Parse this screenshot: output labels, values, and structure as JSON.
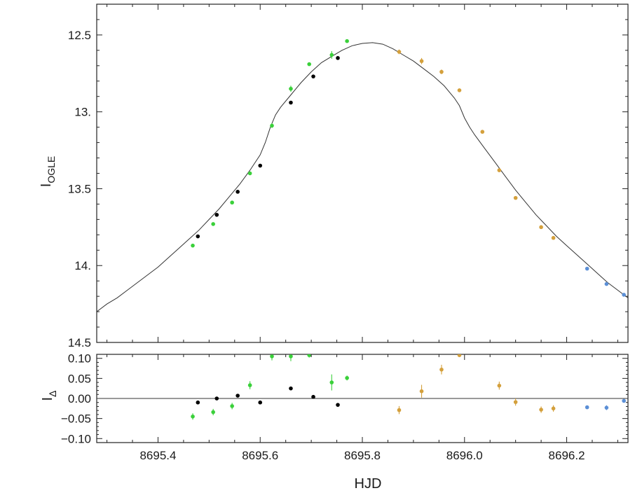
{
  "chart_data": [
    {
      "type": "scatter",
      "panel": "main",
      "xlabel": "HJD",
      "ylabel_main": "I",
      "ylabel_sub": "OGLE",
      "ylim": [
        14.5,
        12.3
      ],
      "y_inverted": true,
      "xlim": [
        8695.28,
        8696.32
      ],
      "x_ticks": [
        8695.4,
        8695.6,
        8695.8,
        8696.0,
        8696.2
      ],
      "x_tick_labels": [
        "8695.4",
        "8695.6",
        "8695.8",
        "8696.0",
        "8696.2"
      ],
      "y_ticks": [
        12.5,
        13.0,
        13.5,
        14.0,
        14.5
      ],
      "y_tick_labels": [
        "12.5",
        "13.",
        "13.5",
        "14.",
        "14.5"
      ],
      "series": [
        {
          "color": "#3ad03a",
          "points": [
            {
              "x": 8695.468,
              "y": 13.87,
              "err": 0.01
            },
            {
              "x": 8695.508,
              "y": 13.73,
              "err": 0.01
            },
            {
              "x": 8695.545,
              "y": 13.59,
              "err": 0.01
            },
            {
              "x": 8695.58,
              "y": 13.4,
              "err": 0.01
            },
            {
              "x": 8695.623,
              "y": 13.09,
              "err": 0.015
            },
            {
              "x": 8695.66,
              "y": 12.85,
              "err": 0.02
            },
            {
              "x": 8695.696,
              "y": 12.69,
              "err": 0.01
            },
            {
              "x": 8695.74,
              "y": 12.63,
              "err": 0.025
            },
            {
              "x": 8695.77,
              "y": 12.54,
              "err": 0.01
            }
          ]
        },
        {
          "color": "#000000",
          "points": [
            {
              "x": 8695.478,
              "y": 13.81,
              "err": 0.005
            },
            {
              "x": 8695.515,
              "y": 13.67,
              "err": 0.005
            },
            {
              "x": 8695.556,
              "y": 13.52,
              "err": 0.005
            },
            {
              "x": 8695.6,
              "y": 13.35,
              "err": 0.005
            },
            {
              "x": 8695.66,
              "y": 12.94,
              "err": 0.005
            },
            {
              "x": 8695.704,
              "y": 12.77,
              "err": 0.005
            },
            {
              "x": 8695.752,
              "y": 12.65,
              "err": 0.005
            }
          ]
        },
        {
          "color": "#d4a03c",
          "points": [
            {
              "x": 8695.872,
              "y": 12.61,
              "err": 0.015
            },
            {
              "x": 8695.916,
              "y": 12.67,
              "err": 0.02
            },
            {
              "x": 8695.955,
              "y": 12.74,
              "err": 0.015
            },
            {
              "x": 8695.99,
              "y": 12.86,
              "err": 0.01
            },
            {
              "x": 8696.035,
              "y": 13.13,
              "err": 0.01
            },
            {
              "x": 8696.068,
              "y": 13.38,
              "err": 0.01
            },
            {
              "x": 8696.1,
              "y": 13.56,
              "err": 0.01
            },
            {
              "x": 8696.15,
              "y": 13.75,
              "err": 0.01
            },
            {
              "x": 8696.174,
              "y": 13.82,
              "err": 0.01
            }
          ]
        },
        {
          "color": "#5b8fd6",
          "points": [
            {
              "x": 8696.24,
              "y": 14.02,
              "err": 0.01
            },
            {
              "x": 8696.278,
              "y": 14.12,
              "err": 0.01
            },
            {
              "x": 8696.312,
              "y": 14.19,
              "err": 0.01
            }
          ]
        }
      ],
      "model_curve": {
        "x": [
          8695.28,
          8695.3,
          8695.32,
          8695.34,
          8695.36,
          8695.38,
          8695.4,
          8695.42,
          8695.44,
          8695.46,
          8695.48,
          8695.5,
          8695.52,
          8695.54,
          8695.56,
          8695.58,
          8695.6,
          8695.61,
          8695.62,
          8695.63,
          8695.64,
          8695.66,
          8695.68,
          8695.7,
          8695.72,
          8695.74,
          8695.76,
          8695.78,
          8695.8,
          8695.82,
          8695.84,
          8695.86,
          8695.88,
          8695.9,
          8695.92,
          8695.94,
          8695.96,
          8695.98,
          8695.99,
          8696.0,
          8696.01,
          8696.02,
          8696.04,
          8696.06,
          8696.08,
          8696.1,
          8696.12,
          8696.14,
          8696.16,
          8696.18,
          8696.2,
          8696.22,
          8696.24,
          8696.26,
          8696.28,
          8696.3,
          8696.32
        ],
        "y": [
          14.3,
          14.25,
          14.21,
          14.16,
          14.11,
          14.06,
          14.01,
          13.95,
          13.89,
          13.83,
          13.77,
          13.7,
          13.63,
          13.55,
          13.47,
          13.38,
          13.28,
          13.2,
          13.1,
          13.02,
          12.97,
          12.89,
          12.81,
          12.74,
          12.68,
          12.64,
          12.6,
          12.57,
          12.555,
          12.55,
          12.56,
          12.59,
          12.63,
          12.67,
          12.72,
          12.77,
          12.83,
          12.91,
          12.96,
          13.04,
          13.1,
          13.15,
          13.24,
          13.33,
          13.42,
          13.51,
          13.59,
          13.67,
          13.74,
          13.81,
          13.87,
          13.93,
          13.99,
          14.05,
          14.11,
          14.16,
          14.21
        ]
      }
    },
    {
      "type": "scatter",
      "panel": "residual",
      "ylabel_main": "I",
      "ylabel_sub": "Δ",
      "ylim": [
        -0.11,
        0.11
      ],
      "y_ticks": [
        0.1,
        0.05,
        0.0,
        -0.05,
        -0.1
      ],
      "y_tick_labels": [
        "0.10",
        "0.05",
        "0.00",
        "−0.05",
        "−0.10"
      ],
      "zero_line": 0.0,
      "series": [
        {
          "color": "#3ad03a",
          "points": [
            {
              "x": 8695.468,
              "y": -0.045,
              "err": 0.008
            },
            {
              "x": 8695.508,
              "y": -0.034,
              "err": 0.008
            },
            {
              "x": 8695.545,
              "y": -0.019,
              "err": 0.008
            },
            {
              "x": 8695.58,
              "y": 0.033,
              "err": 0.01
            },
            {
              "x": 8695.623,
              "y": 0.105,
              "err": 0.01
            },
            {
              "x": 8695.66,
              "y": 0.105,
              "err": 0.012
            },
            {
              "x": 8695.696,
              "y": 0.108,
              "err": 0.006
            },
            {
              "x": 8695.74,
              "y": 0.04,
              "err": 0.02
            },
            {
              "x": 8695.77,
              "y": 0.051,
              "err": 0.006
            }
          ]
        },
        {
          "color": "#000000",
          "points": [
            {
              "x": 8695.478,
              "y": -0.01,
              "err": 0.003
            },
            {
              "x": 8695.515,
              "y": 0.0,
              "err": 0.003
            },
            {
              "x": 8695.556,
              "y": 0.007,
              "err": 0.003
            },
            {
              "x": 8695.6,
              "y": -0.01,
              "err": 0.003
            },
            {
              "x": 8695.66,
              "y": 0.025,
              "err": 0.003
            },
            {
              "x": 8695.704,
              "y": 0.004,
              "err": 0.003
            },
            {
              "x": 8695.752,
              "y": -0.016,
              "err": 0.003
            }
          ]
        },
        {
          "color": "#d4a03c",
          "points": [
            {
              "x": 8695.872,
              "y": -0.029,
              "err": 0.01
            },
            {
              "x": 8695.916,
              "y": 0.018,
              "err": 0.016
            },
            {
              "x": 8695.955,
              "y": 0.072,
              "err": 0.012
            },
            {
              "x": 8695.99,
              "y": 0.108,
              "err": 0.005
            },
            {
              "x": 8696.068,
              "y": 0.032,
              "err": 0.01
            },
            {
              "x": 8696.1,
              "y": -0.009,
              "err": 0.009
            },
            {
              "x": 8696.15,
              "y": -0.028,
              "err": 0.008
            },
            {
              "x": 8696.174,
              "y": -0.025,
              "err": 0.008
            }
          ]
        },
        {
          "color": "#5b8fd6",
          "points": [
            {
              "x": 8696.24,
              "y": -0.022,
              "err": 0.004
            },
            {
              "x": 8696.278,
              "y": -0.023,
              "err": 0.006
            },
            {
              "x": 8696.312,
              "y": -0.006,
              "err": 0.004
            }
          ]
        }
      ]
    }
  ]
}
